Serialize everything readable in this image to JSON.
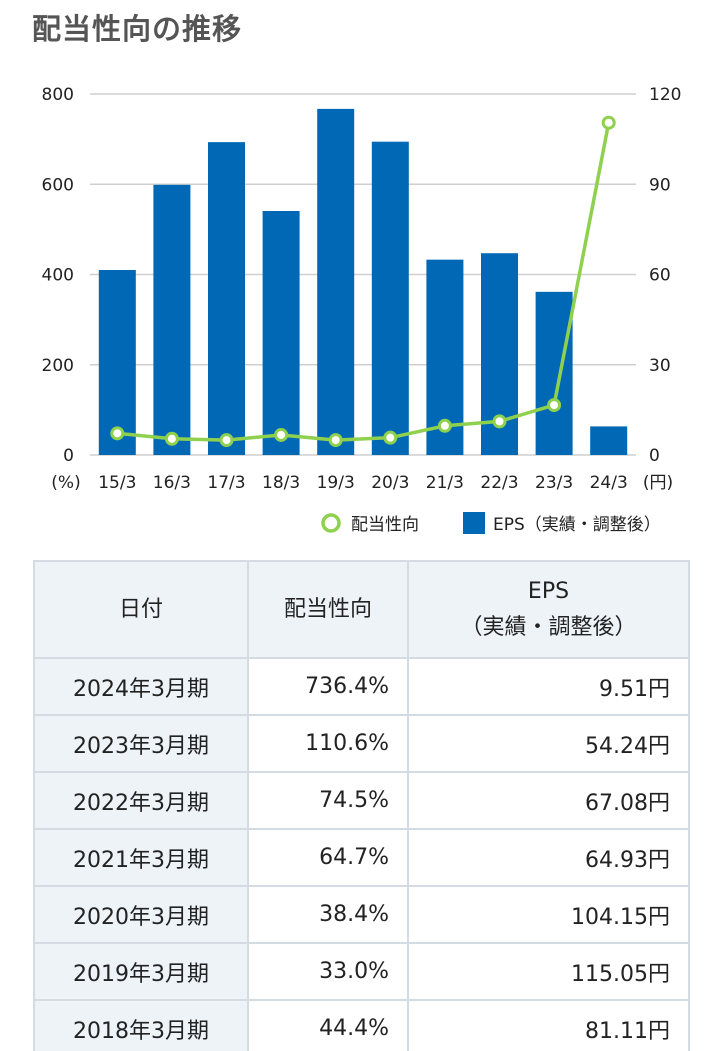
{
  "page": {
    "title": "配当性向の推移"
  },
  "chart_data": {
    "type": "bar",
    "categories": [
      "15/3",
      "16/3",
      "17/3",
      "18/3",
      "19/3",
      "20/3",
      "21/3",
      "22/3",
      "23/3",
      "24/3"
    ],
    "series": [
      {
        "name": "EPS（実績・調整後）",
        "kind": "bar",
        "axis": "right",
        "color": "#0068b4",
        "values": [
          61.5,
          89.8,
          104.0,
          81.11,
          115.05,
          104.15,
          64.93,
          67.08,
          54.24,
          9.51
        ]
      },
      {
        "name": "配当性向",
        "kind": "line",
        "axis": "left",
        "color": "#8fd14f",
        "values": [
          48.0,
          36.0,
          33.0,
          44.4,
          33.0,
          38.4,
          64.7,
          74.5,
          110.6,
          736.4
        ]
      }
    ],
    "y_left": {
      "min": 0,
      "max": 800,
      "ticks": [
        "0",
        "200",
        "400",
        "600",
        "800"
      ],
      "unit": "(%)"
    },
    "y_right": {
      "min": 0,
      "max": 120,
      "ticks": [
        "0",
        "30",
        "60",
        "90",
        "120"
      ],
      "unit": "(円)"
    },
    "grid": true,
    "legend_position": "bottom-right"
  },
  "table": {
    "headers": {
      "date": "日付",
      "ratio": "配当性向",
      "eps_line1": "EPS",
      "eps_line2": "（実績・調整後）"
    },
    "rows": [
      {
        "date": "2024年3月期",
        "ratio": "736.4%",
        "eps": "9.51円"
      },
      {
        "date": "2023年3月期",
        "ratio": "110.6%",
        "eps": "54.24円"
      },
      {
        "date": "2022年3月期",
        "ratio": "74.5%",
        "eps": "67.08円"
      },
      {
        "date": "2021年3月期",
        "ratio": "64.7%",
        "eps": "64.93円"
      },
      {
        "date": "2020年3月期",
        "ratio": "38.4%",
        "eps": "104.15円"
      },
      {
        "date": "2019年3月期",
        "ratio": "33.0%",
        "eps": "115.05円"
      },
      {
        "date": "2018年3月期",
        "ratio": "44.4%",
        "eps": "81.11円"
      }
    ]
  }
}
